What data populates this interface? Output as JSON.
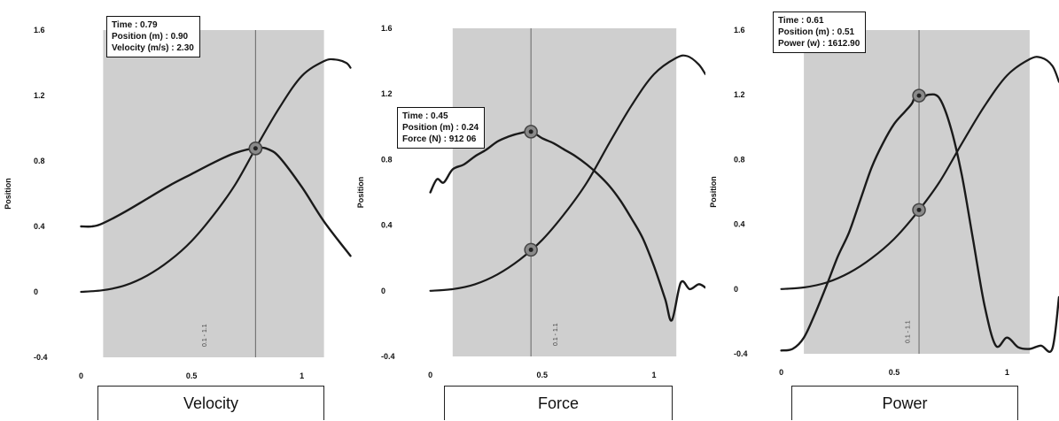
{
  "chart_data": [
    {
      "type": "line",
      "title": "Velocity",
      "ylabel": "Position",
      "xlabel": "",
      "xlim": [
        -0.03,
        1.23
      ],
      "ylim": [
        -0.4,
        1.6
      ],
      "yticks": [
        "1.6",
        "1.2",
        "0.8",
        "0.4",
        "0",
        "-0.4"
      ],
      "xticks": [
        "0",
        "0.5",
        "1"
      ],
      "range_label": "0.1 - 1.1",
      "cursor_x": 0.79,
      "tooltip": [
        "Time : 0.79",
        "Position (m) : 0.90",
        "Velocity (m/s) : 2.30"
      ],
      "series": [
        {
          "x": [
            0,
            0.1,
            0.2,
            0.3,
            0.4,
            0.5,
            0.6,
            0.7,
            0.8,
            0.9,
            1.0,
            1.1,
            1.15,
            1.2,
            1.22
          ],
          "values": [
            0,
            0.01,
            0.04,
            0.1,
            0.19,
            0.31,
            0.47,
            0.66,
            0.9,
            1.13,
            1.32,
            1.41,
            1.42,
            1.4,
            1.37
          ]
        },
        {
          "x": [
            0,
            0.05,
            0.1,
            0.2,
            0.3,
            0.4,
            0.5,
            0.6,
            0.7,
            0.8,
            0.85,
            0.9,
            1.0,
            1.1,
            1.22
          ],
          "values": [
            0.4,
            0.4,
            0.42,
            0.49,
            0.57,
            0.65,
            0.72,
            0.79,
            0.85,
            0.88,
            0.87,
            0.82,
            0.64,
            0.43,
            0.22
          ]
        }
      ]
    },
    {
      "type": "line",
      "title": "Force",
      "ylabel": "Position",
      "xlabel": "",
      "xlim": [
        -0.03,
        1.23
      ],
      "ylim": [
        -0.4,
        1.6
      ],
      "yticks": [
        "1.6",
        "1.2",
        "0.8",
        "0.4",
        "0",
        "-0.4"
      ],
      "xticks": [
        "0",
        "0.5",
        "1"
      ],
      "range_label": "0.1 - 1.1",
      "cursor_x": 0.45,
      "tooltip": [
        "Time : 0.45",
        "Position (m) : 0.24",
        "Force (N) : 912 06"
      ],
      "series": [
        {
          "x": [
            0,
            0.1,
            0.2,
            0.3,
            0.4,
            0.5,
            0.6,
            0.7,
            0.8,
            0.9,
            1.0,
            1.1,
            1.15,
            1.2,
            1.23
          ],
          "values": [
            0,
            0.01,
            0.04,
            0.1,
            0.19,
            0.31,
            0.47,
            0.66,
            0.9,
            1.13,
            1.32,
            1.42,
            1.43,
            1.38,
            1.32
          ]
        },
        {
          "x": [
            0,
            0.03,
            0.06,
            0.1,
            0.15,
            0.2,
            0.25,
            0.3,
            0.35,
            0.4,
            0.45,
            0.5,
            0.55,
            0.6,
            0.65,
            0.7,
            0.75,
            0.8,
            0.85,
            0.9,
            0.95,
            1.0,
            1.05,
            1.08,
            1.12,
            1.16,
            1.2,
            1.23
          ],
          "values": [
            0.6,
            0.68,
            0.66,
            0.74,
            0.77,
            0.82,
            0.86,
            0.91,
            0.94,
            0.96,
            0.97,
            0.93,
            0.9,
            0.86,
            0.82,
            0.77,
            0.71,
            0.64,
            0.55,
            0.44,
            0.32,
            0.15,
            -0.05,
            -0.18,
            0.05,
            0.01,
            0.04,
            0.02
          ]
        }
      ]
    },
    {
      "type": "line",
      "title": "Power",
      "ylabel": "Position",
      "xlabel": "",
      "xlim": [
        -0.03,
        1.23
      ],
      "ylim": [
        -0.4,
        1.6
      ],
      "yticks": [
        "1.6",
        "1.2",
        "0.8",
        "0.4",
        "0",
        "-0.4"
      ],
      "xticks": [
        "0",
        "0.5",
        "1"
      ],
      "range_label": "0.1 - 1.1",
      "cursor_x": 0.61,
      "tooltip": [
        "Time : 0.61",
        "Position (m) : 0.51",
        "Power (w) : 1612.90"
      ],
      "series": [
        {
          "x": [
            0,
            0.1,
            0.2,
            0.3,
            0.4,
            0.5,
            0.6,
            0.7,
            0.8,
            0.9,
            1.0,
            1.1,
            1.15,
            1.2,
            1.23
          ],
          "values": [
            0,
            0.01,
            0.04,
            0.1,
            0.19,
            0.31,
            0.47,
            0.66,
            0.9,
            1.13,
            1.32,
            1.42,
            1.43,
            1.38,
            1.28
          ]
        },
        {
          "x": [
            0,
            0.05,
            0.1,
            0.15,
            0.2,
            0.25,
            0.3,
            0.35,
            0.4,
            0.45,
            0.5,
            0.55,
            0.58,
            0.6,
            0.62,
            0.65,
            0.7,
            0.75,
            0.8,
            0.85,
            0.9,
            0.95,
            1.0,
            1.05,
            1.1,
            1.15,
            1.2,
            1.23
          ],
          "values": [
            -0.38,
            -0.37,
            -0.3,
            -0.15,
            0.02,
            0.2,
            0.35,
            0.55,
            0.75,
            0.9,
            1.02,
            1.1,
            1.15,
            1.22,
            1.17,
            1.2,
            1.18,
            1.0,
            0.7,
            0.3,
            -0.1,
            -0.35,
            -0.3,
            -0.36,
            -0.37,
            -0.35,
            -0.37,
            -0.05
          ]
        }
      ]
    }
  ]
}
